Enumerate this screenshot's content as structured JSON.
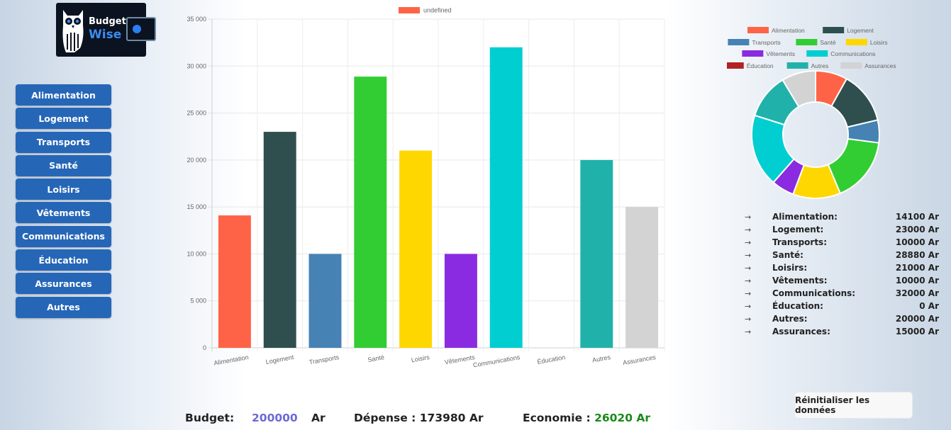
{
  "brand": {
    "name_line1": "Budget",
    "name_line2": "Wise"
  },
  "colors": {
    "button": "#2666b7",
    "budget_value": "#6a6ad6",
    "savings_value": "#1a8a1a"
  },
  "sidebar": {
    "items": [
      "Alimentation",
      "Logement",
      "Transports",
      "Santé",
      "Loisirs",
      "Vêtements",
      "Communications",
      "Éducation",
      "Assurances",
      "Autres"
    ]
  },
  "chart_data": [
    {
      "type": "bar",
      "legend": {
        "label": "undefined",
        "color": "#ff6347",
        "position": "top"
      },
      "categories": [
        "Alimentation",
        "Logement",
        "Transports",
        "Santé",
        "Loisirs",
        "Vêtements",
        "Communications",
        "Éducation",
        "Autres",
        "Assurances"
      ],
      "values": [
        14100,
        23000,
        10000,
        28880,
        21000,
        10000,
        32000,
        0,
        20000,
        15000
      ],
      "colors": [
        "#ff6347",
        "#2f4f4f",
        "#4682b4",
        "#32cd32",
        "#ffd700",
        "#8a2be2",
        "#00ced1",
        "#b22222",
        "#20b2aa",
        "#d3d3d3"
      ],
      "ylim": [
        0,
        35000
      ],
      "yticks": [
        "0",
        "5 000",
        "10 000",
        "15 000",
        "20 000",
        "25 000",
        "30 000",
        "35 000"
      ],
      "grid": true
    },
    {
      "type": "pie",
      "legend": {
        "position": "top",
        "labels": [
          "Alimentation",
          "Logement",
          "Transports",
          "Santé",
          "Loisirs",
          "Vêtements",
          "Communications",
          "Éducation",
          "Autres",
          "Assurances"
        ]
      },
      "categories": [
        "Alimentation",
        "Logement",
        "Transports",
        "Santé",
        "Loisirs",
        "Vêtements",
        "Communications",
        "Éducation",
        "Autres",
        "Assurances"
      ],
      "values": [
        14100,
        23000,
        10000,
        28880,
        21000,
        10000,
        32000,
        0,
        20000,
        15000
      ],
      "colors": [
        "#ff6347",
        "#2f4f4f",
        "#4682b4",
        "#32cd32",
        "#ffd700",
        "#8a2be2",
        "#00ced1",
        "#b22222",
        "#20b2aa",
        "#d3d3d3"
      ]
    }
  ],
  "summary": {
    "arrow": "→",
    "rows": [
      {
        "name": "Alimentation:",
        "value": "14100 Ar"
      },
      {
        "name": "Logement:",
        "value": "23000 Ar"
      },
      {
        "name": "Transports:",
        "value": "10000 Ar"
      },
      {
        "name": "Santé:",
        "value": "28880 Ar"
      },
      {
        "name": "Loisirs:",
        "value": "21000 Ar"
      },
      {
        "name": "Vêtements:",
        "value": "10000 Ar"
      },
      {
        "name": "Communications:",
        "value": "32000 Ar"
      },
      {
        "name": "Éducation:",
        "value": "0 Ar"
      },
      {
        "name": "Autres:",
        "value": "20000 Ar"
      },
      {
        "name": "Assurances:",
        "value": "15000 Ar"
      }
    ]
  },
  "reset_label": "Réinitialiser les données",
  "footer": {
    "budget_label": "Budget:",
    "budget_value": "200000",
    "budget_unit": "Ar",
    "expense": "Dépense : 173980 Ar",
    "savings_label": "Economie : ",
    "savings_value": "26020 Ar"
  }
}
